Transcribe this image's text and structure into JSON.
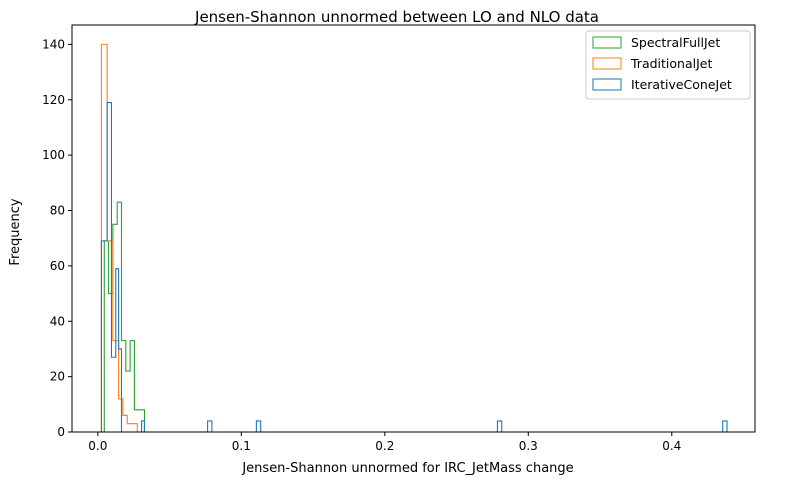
{
  "chart_data": {
    "type": "histogram",
    "title": "Jensen-Shannon unnormed between LO and NLO data",
    "xlabel": "Jensen-Shannon unnormed for IRC_JetMass change",
    "ylabel": "Frequency",
    "xlim": [
      -0.018,
      0.458
    ],
    "ylim": [
      0,
      147
    ],
    "xticks": [
      0.0,
      0.1,
      0.2,
      0.3,
      0.4
    ],
    "xtick_labels": [
      "0.0",
      "0.1",
      "0.2",
      "0.3",
      "0.4"
    ],
    "yticks": [
      0,
      20,
      40,
      60,
      80,
      100,
      120,
      140
    ],
    "ytick_labels": [
      "0",
      "20",
      "40",
      "60",
      "80",
      "100",
      "120",
      "140"
    ],
    "grid": false,
    "legend_position": "top-right",
    "series": [
      {
        "name": "SpectralFullJet",
        "color": "#2ca02c",
        "style": "step",
        "bins": [
          [
            0.0045,
            0.0075,
            69
          ],
          [
            0.0075,
            0.0105,
            50
          ],
          [
            0.0105,
            0.0135,
            75
          ],
          [
            0.0135,
            0.0165,
            83
          ],
          [
            0.0165,
            0.0195,
            33
          ],
          [
            0.0195,
            0.0225,
            22
          ],
          [
            0.0225,
            0.0255,
            33
          ],
          [
            0.0255,
            0.0285,
            8
          ],
          [
            0.0285,
            0.0325,
            8
          ]
        ]
      },
      {
        "name": "TraditionalJet",
        "color": "#ff7f0e",
        "style": "step",
        "bins": [
          [
            0.0025,
            0.0065,
            140
          ],
          [
            0.0065,
            0.0105,
            69
          ],
          [
            0.0105,
            0.0145,
            33
          ],
          [
            0.0145,
            0.0175,
            12
          ],
          [
            0.0175,
            0.0205,
            6
          ],
          [
            0.0205,
            0.0235,
            3
          ],
          [
            0.0235,
            0.0275,
            3
          ]
        ]
      },
      {
        "name": "IterativeConeJet",
        "color": "#1f77b4",
        "style": "step",
        "bins": [
          [
            0.0025,
            0.0065,
            69
          ],
          [
            0.0065,
            0.0095,
            119
          ],
          [
            0.0095,
            0.0125,
            27
          ],
          [
            0.0125,
            0.0145,
            59
          ],
          [
            0.0145,
            0.0165,
            30
          ],
          [
            0.0305,
            0.0325,
            4
          ],
          [
            0.0765,
            0.0795,
            4
          ],
          [
            0.1105,
            0.1135,
            4
          ],
          [
            0.2785,
            0.2815,
            4
          ],
          [
            0.4355,
            0.4385,
            4
          ]
        ]
      }
    ]
  }
}
